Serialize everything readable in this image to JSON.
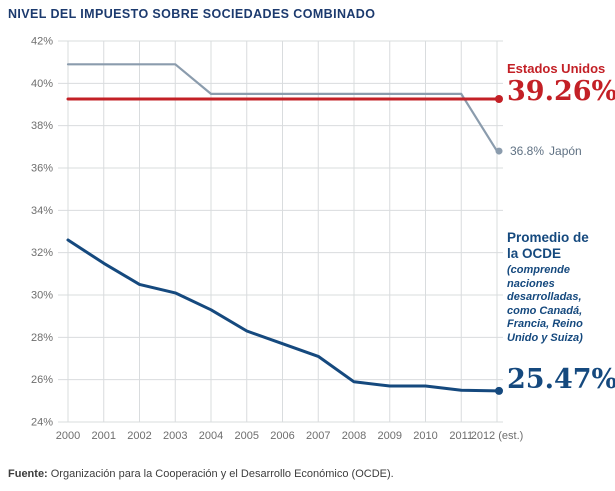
{
  "title": "NIVEL DEL IMPUESTO SOBRE SOCIEDADES COMBINADO",
  "colors": {
    "title": "#1c3a6e",
    "us_red": "#c32026",
    "japan_gray": "#8b9cad",
    "japan_text": "#5f7183",
    "oecd_blue": "#15497e",
    "grid": "#d9dcde",
    "axis_text": "#6e6e6e",
    "footer_text": "#3d3d3d"
  },
  "annotations": {
    "us_label": "Estados Unidos",
    "us_value": "39.26%",
    "japan_value": "36.8%",
    "japan_name": "Japón",
    "oecd_title": "Promedio de\nla OCDE",
    "oecd_desc": "(comprende\nnaciones\ndesarrolladas,\ncomo Canadá,\nFrancia, Reino\nUnido y Suiza)",
    "oecd_value": "25.47%"
  },
  "footer": {
    "source_label": "Fuente:",
    "source_text": "Organización para la Cooperación y el Desarrollo Económico (OCDE)."
  },
  "chart_data": {
    "type": "line",
    "title": "NIVEL DEL IMPUESTO SOBRE SOCIEDADES COMBINADO",
    "x_tick_labels": [
      "2000",
      "2001",
      "2002",
      "2003",
      "2004",
      "2005",
      "2006",
      "2007",
      "2008",
      "2009",
      "2010",
      "2011",
      "2012 (est.)"
    ],
    "y_ticks": [
      24,
      26,
      28,
      30,
      32,
      34,
      36,
      38,
      40,
      42
    ],
    "ylim": [
      24,
      42
    ],
    "grid": true,
    "legend_position": "right-annotations",
    "series": [
      {
        "id": "japon",
        "name": "Japón",
        "color_key": "japan_gray",
        "end_dot": true,
        "end_label": "36.8% Japón",
        "values": [
          40.9,
          40.9,
          40.9,
          40.9,
          39.5,
          39.5,
          39.5,
          39.5,
          39.5,
          39.5,
          39.5,
          39.5,
          36.8
        ]
      },
      {
        "id": "estados-unidos",
        "name": "Estados Unidos",
        "color_key": "us_red",
        "end_dot": true,
        "end_label": "39.26%",
        "values": [
          39.26,
          39.26,
          39.26,
          39.26,
          39.26,
          39.26,
          39.26,
          39.26,
          39.26,
          39.26,
          39.26,
          39.26,
          39.26
        ]
      },
      {
        "id": "ocde",
        "name": "Promedio de la OCDE",
        "color_key": "oecd_blue",
        "end_dot": true,
        "end_label": "25.47%",
        "values": [
          32.6,
          31.5,
          30.5,
          30.1,
          29.3,
          28.3,
          27.7,
          27.1,
          25.9,
          25.7,
          25.7,
          25.5,
          25.47
        ]
      }
    ]
  }
}
